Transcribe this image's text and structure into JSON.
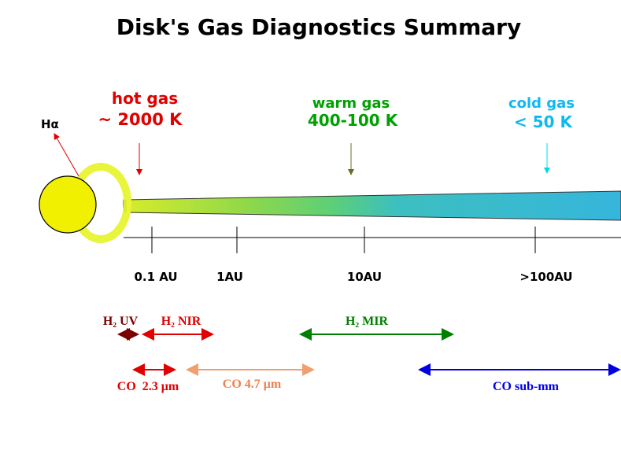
{
  "header": {
    "title": "Disk's Gas Diagnostics Summary"
  },
  "star": {
    "label": "Hα"
  },
  "regions": [
    {
      "name": "hot gas",
      "temperature": "~ 2000 K"
    },
    {
      "name": "warm gas",
      "temperature": "400-100 K"
    },
    {
      "name": "cold gas",
      "temperature": "< 50 K"
    }
  ],
  "axis": {
    "labels": [
      "0.1 AU",
      "1AU",
      "10AU",
      ">100AU"
    ]
  },
  "diagnostics": [
    {
      "label": "H₂ UV"
    },
    {
      "label": "H₂ NIR"
    },
    {
      "label": "H₂ MIR"
    },
    {
      "label": "CO  2.3 μm"
    },
    {
      "label": "CO 4.7 μm"
    },
    {
      "label": "CO sub-mm"
    }
  ]
}
